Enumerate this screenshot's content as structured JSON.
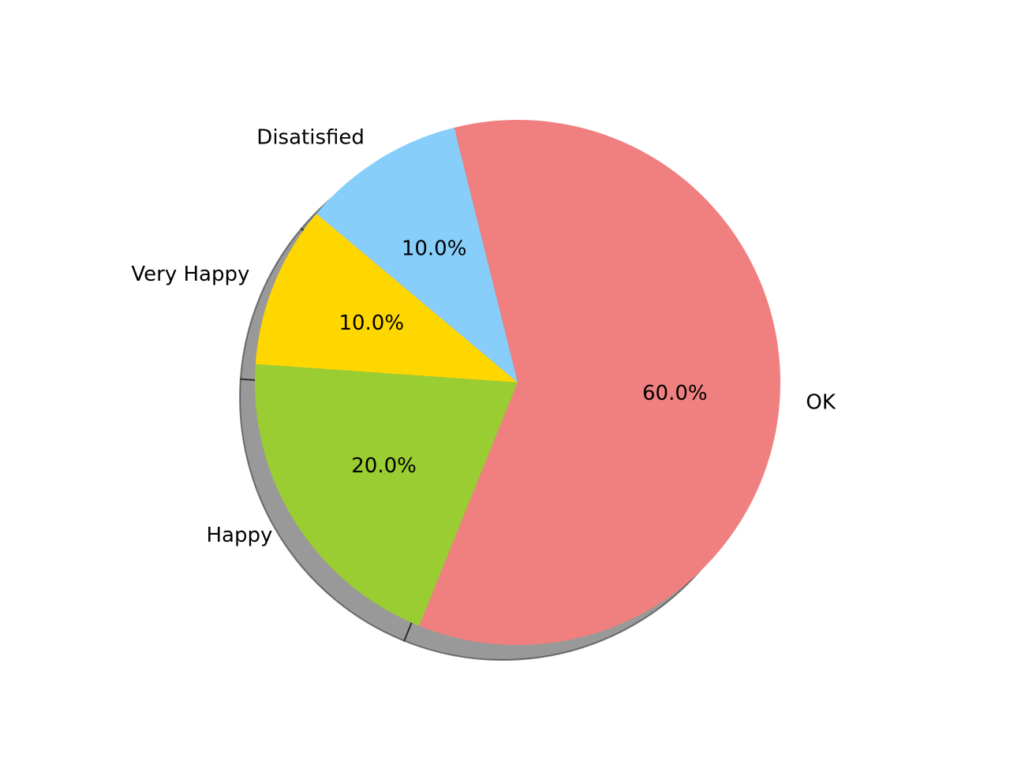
{
  "chart_data": {
    "type": "pie",
    "title": "",
    "start_angle_deg": 140,
    "direction": "counterclockwise",
    "shadow": true,
    "slices": [
      {
        "label": "Very Happy",
        "value": 10,
        "percent_label": "10.0%",
        "color": "#FFD700"
      },
      {
        "label": "Happy",
        "value": 20,
        "percent_label": "20.0%",
        "color": "#9ACD32"
      },
      {
        "label": "OK",
        "value": 60,
        "percent_label": "60.0%",
        "color": "#F08080"
      },
      {
        "label": "Disatisfied",
        "value": 10,
        "percent_label": "10.0%",
        "color": "#87CEFA"
      }
    ]
  }
}
